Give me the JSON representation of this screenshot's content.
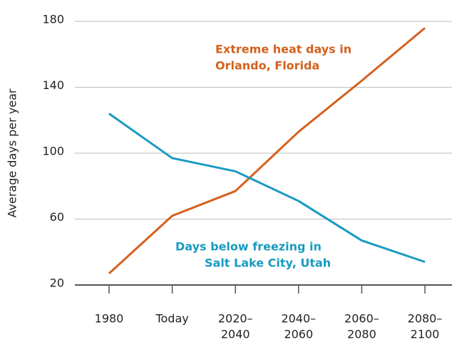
{
  "chart_data": {
    "type": "line",
    "ylabel": "Average days per year",
    "categories": [
      [
        "1980"
      ],
      [
        "Today"
      ],
      [
        "2020–",
        "2040"
      ],
      [
        "2040–",
        "2060"
      ],
      [
        "2060–",
        "2080"
      ],
      [
        "2080–",
        "2100"
      ]
    ],
    "series": [
      {
        "name": [
          "Extreme heat days in",
          "Orlando, Florida"
        ],
        "color": "#d4611d",
        "values": [
          27,
          62,
          77,
          113,
          144,
          176
        ]
      },
      {
        "name": [
          "Days below freezing in",
          "Salt Lake City, Utah"
        ],
        "color": "#1a9bc1",
        "values": [
          124,
          97,
          89,
          71,
          47,
          34
        ]
      }
    ],
    "ylim": [
      20,
      180
    ],
    "yticks": [
      20,
      60,
      100,
      140,
      180
    ],
    "grid": true
  }
}
